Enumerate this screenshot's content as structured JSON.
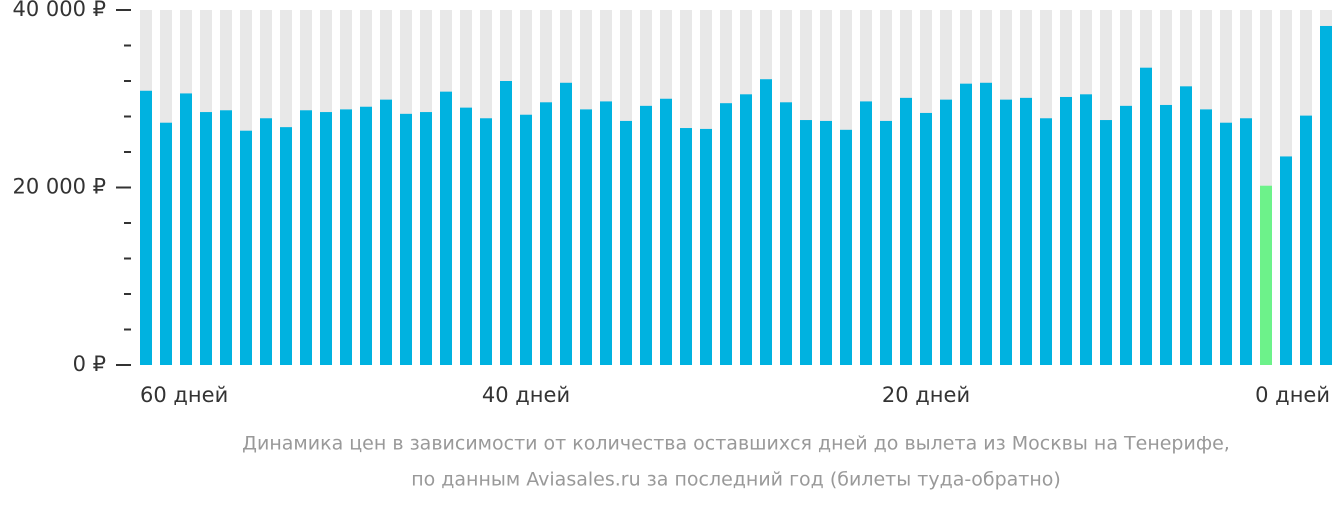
{
  "chart_data": {
    "type": "bar",
    "caption": [
      "Динамика цен в зависимости от количества оставшихся дней до вылета из Москвы на Тенерифе,",
      "по данным Aviasales.ru за последний год (билеты туда-обратно)"
    ],
    "categories": [
      "60 дней",
      null,
      null,
      null,
      null,
      null,
      null,
      null,
      null,
      null,
      null,
      null,
      null,
      null,
      null,
      null,
      null,
      null,
      null,
      "40 дней",
      null,
      null,
      null,
      null,
      null,
      null,
      null,
      null,
      null,
      null,
      null,
      null,
      null,
      null,
      null,
      null,
      null,
      null,
      null,
      "20 дней",
      null,
      null,
      null,
      null,
      null,
      null,
      null,
      null,
      null,
      null,
      null,
      null,
      null,
      null,
      null,
      null,
      null,
      null,
      null,
      "0 дней"
    ],
    "values": [
      30900,
      27300,
      30600,
      28500,
      28700,
      26400,
      27800,
      26800,
      28700,
      28500,
      28800,
      29100,
      29900,
      28300,
      28500,
      30800,
      29000,
      27800,
      32000,
      28200,
      29600,
      31800,
      28800,
      29700,
      27500,
      29200,
      30000,
      26700,
      26600,
      29500,
      30500,
      32200,
      29600,
      27600,
      27500,
      26500,
      29700,
      27500,
      30100,
      28400,
      29900,
      31700,
      31800,
      29900,
      30100,
      27800,
      30200,
      30500,
      27600,
      29200,
      33500,
      29300,
      31400,
      28800,
      27300,
      27800,
      20200,
      23500,
      28100,
      38200
    ],
    "color": "#00b2e0",
    "highlight": {
      "index": 56,
      "color": "#6df28a"
    },
    "background_color": "#e8e8e8",
    "ylim": [
      0,
      40000
    ],
    "yticks": [
      {
        "value": 0,
        "label": "0 ₽"
      },
      {
        "value": 20000,
        "label": "20 000 ₽"
      },
      {
        "value": 40000,
        "label": "40 000 ₽"
      }
    ],
    "minor_yticks": [
      4000,
      8000,
      12000,
      16000,
      24000,
      28000,
      32000,
      36000
    ]
  }
}
